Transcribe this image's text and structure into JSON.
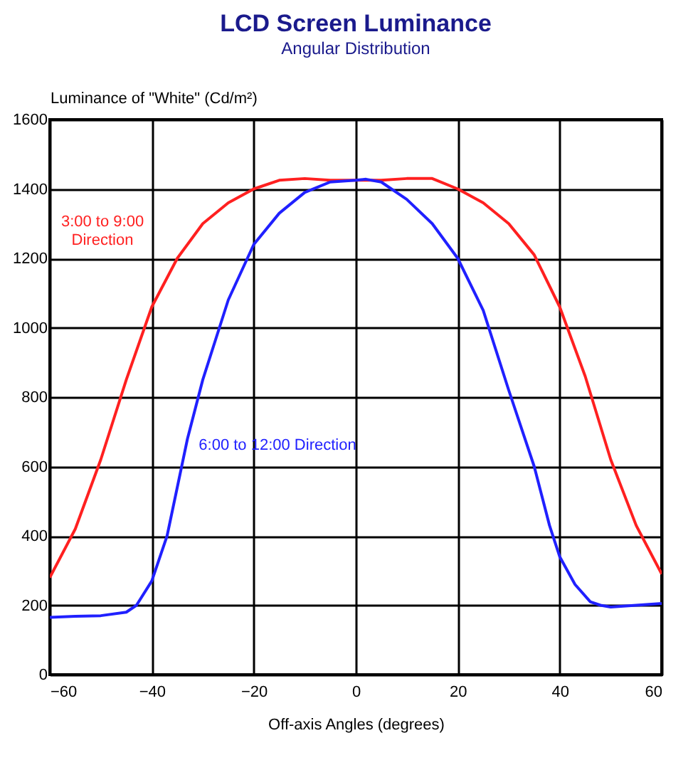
{
  "chart_data": {
    "type": "line",
    "title": "LCD Screen Luminance",
    "subtitle": "Angular Distribution",
    "xlabel": "Off-axis Angles (degrees)",
    "ylabel": "Luminance of \"White\" (Cd/m²)",
    "xlim": [
      -60,
      60
    ],
    "xticks": [
      -60,
      -40,
      -20,
      0,
      20,
      40,
      60
    ],
    "ylim": [
      0,
      1600
    ],
    "yticks": [
      0,
      200,
      400,
      600,
      800,
      1000,
      1200,
      1400,
      1600
    ],
    "grid": true,
    "legend": false,
    "marker": "none",
    "line_style": "solid",
    "series": [
      {
        "name": "3:00 to 9:00 Direction",
        "color": "#ff2020",
        "x": [
          -60,
          -55,
          -50,
          -45,
          -40,
          -35,
          -30,
          -25,
          -20,
          -15,
          -10,
          -5,
          0,
          5,
          10,
          15,
          20,
          25,
          30,
          35,
          40,
          45,
          50,
          55,
          60
        ],
        "values": [
          280,
          420,
          620,
          850,
          1060,
          1200,
          1300,
          1360,
          1400,
          1425,
          1430,
          1425,
          1425,
          1425,
          1430,
          1430,
          1400,
          1360,
          1300,
          1210,
          1060,
          860,
          620,
          430,
          290
        ]
      },
      {
        "name": "6:00 to 12:00 Direction",
        "color": "#2020ff",
        "x": [
          -60,
          -55,
          -50,
          -45,
          -43,
          -40,
          -37,
          -35,
          -33,
          -30,
          -25,
          -20,
          -15,
          -10,
          -5,
          0,
          2,
          5,
          10,
          15,
          20,
          25,
          30,
          35,
          38,
          40,
          43,
          46,
          48,
          50,
          55,
          60
        ],
        "values": [
          165,
          168,
          170,
          180,
          200,
          270,
          400,
          540,
          680,
          850,
          1080,
          1240,
          1330,
          1390,
          1420,
          1425,
          1428,
          1420,
          1370,
          1300,
          1200,
          1050,
          820,
          600,
          430,
          340,
          260,
          210,
          200,
          195,
          200,
          205
        ]
      }
    ]
  }
}
